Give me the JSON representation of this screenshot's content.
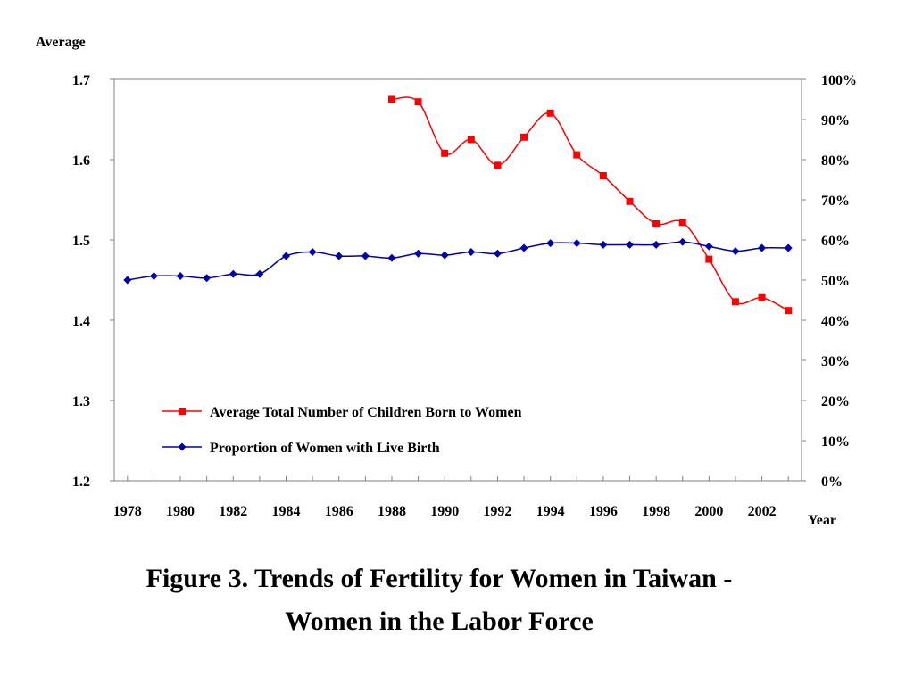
{
  "chart_data": {
    "type": "line",
    "title": "",
    "x": [
      1978,
      1979,
      1980,
      1981,
      1982,
      1983,
      1984,
      1985,
      1986,
      1987,
      1988,
      1989,
      1990,
      1991,
      1992,
      1993,
      1994,
      1995,
      1996,
      1997,
      1998,
      1999,
      2000,
      2001,
      2002,
      2003
    ],
    "x_tick_labels": [
      "1978",
      "1980",
      "1982",
      "1984",
      "1986",
      "1988",
      "1990",
      "1992",
      "1994",
      "1996",
      "1998",
      "2000",
      "2002"
    ],
    "xlabel": "Year",
    "ylabel_left": "Average",
    "ylim_left": [
      1.2,
      1.7
    ],
    "y_left_ticks": [
      "1.2",
      "1.3",
      "1.4",
      "1.5",
      "1.6",
      "1.7"
    ],
    "ylim_right": [
      0,
      100
    ],
    "y_right_ticks": [
      "0%",
      "10%",
      "20%",
      "30%",
      "40%",
      "50%",
      "60%",
      "70%",
      "80%",
      "90%",
      "100%"
    ],
    "grid": false,
    "legend_position": "bottom-left",
    "series": [
      {
        "name": "Average Total Number of Children Born to Women",
        "axis": "left",
        "color": "#ff0000",
        "marker": "square",
        "x": [
          1988,
          1989,
          1990,
          1991,
          1992,
          1993,
          1994,
          1995,
          1996,
          1997,
          1998,
          1999,
          2000,
          2001,
          2002,
          2003
        ],
        "values": [
          1.675,
          1.672,
          1.608,
          1.625,
          1.593,
          1.628,
          1.658,
          1.606,
          1.58,
          1.548,
          1.52,
          1.522,
          1.476,
          1.423,
          1.428,
          1.412
        ]
      },
      {
        "name": "Proportion of Women with Live Birth",
        "axis": "right",
        "color": "#0000aa",
        "marker": "diamond",
        "x": [
          1978,
          1979,
          1980,
          1981,
          1982,
          1983,
          1984,
          1985,
          1986,
          1987,
          1988,
          1989,
          1990,
          1991,
          1992,
          1993,
          1994,
          1995,
          1996,
          1997,
          1998,
          1999,
          2000,
          2001,
          2002,
          2003
        ],
        "values": [
          50,
          51,
          51,
          50.5,
          51.5,
          51.5,
          56,
          57,
          56,
          56,
          55.5,
          56.6,
          56.2,
          57,
          56.6,
          58,
          59.2,
          59.2,
          58.8,
          58.8,
          58.8,
          59.5,
          58.4,
          57.2,
          58,
          58
        ]
      }
    ]
  },
  "caption": {
    "line1": "Figure 3. Trends of Fertility for Women in Taiwan -",
    "line2": "Women in the Labor Force"
  }
}
